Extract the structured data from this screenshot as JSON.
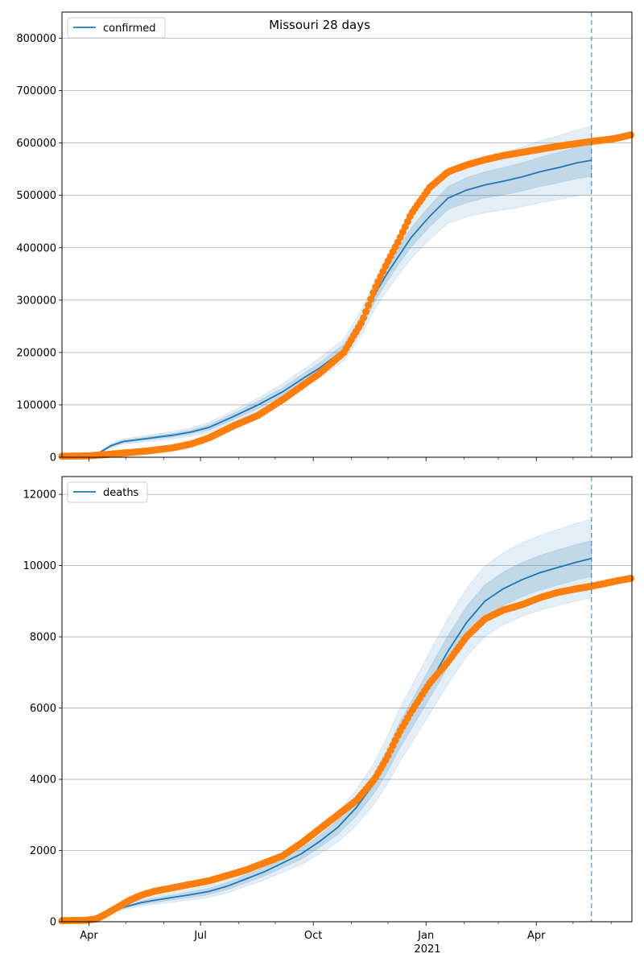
{
  "chart_data": [
    {
      "type": "line",
      "panel": "top",
      "title": "Missouri 28 days",
      "legend": {
        "label": "confirmed",
        "placement": "top-left"
      },
      "ylim": [
        0,
        850000
      ],
      "yticks": [
        0,
        100000,
        200000,
        300000,
        400000,
        500000,
        600000,
        700000,
        800000
      ],
      "ytick_labels": [
        "0",
        "100000",
        "200000",
        "300000",
        "400000",
        "500000",
        "600000",
        "700000",
        "800000"
      ],
      "grid": "horizontal",
      "forecast_line_day": 432,
      "observed": {
        "name": "observed",
        "color": "#ff7f0e",
        "x": [
          0,
          20,
          35,
          50,
          70,
          90,
          105,
          120,
          140,
          160,
          180,
          195,
          210,
          230,
          245,
          255,
          265,
          275,
          285,
          300,
          315,
          330,
          345,
          360,
          375,
          390,
          405,
          420,
          432,
          450,
          465
        ],
        "y": [
          2000,
          2500,
          5000,
          8000,
          12000,
          18000,
          25000,
          37000,
          60000,
          80000,
          110000,
          135000,
          160000,
          200000,
          260000,
          320000,
          370000,
          415000,
          465000,
          515000,
          545000,
          558000,
          568000,
          576000,
          582000,
          588000,
          594000,
          599000,
          603000,
          608000,
          616000
        ]
      },
      "forecast": {
        "name": "confirmed",
        "color": "#1f77b4",
        "x": [
          0,
          25,
          30,
          40,
          50,
          70,
          90,
          105,
          120,
          140,
          160,
          180,
          195,
          210,
          230,
          245,
          255,
          265,
          275,
          285,
          300,
          315,
          330,
          345,
          360,
          375,
          390,
          405,
          420,
          432
        ],
        "y": [
          2000,
          2500,
          8000,
          22000,
          30000,
          36000,
          42000,
          48000,
          57000,
          78000,
          100000,
          125000,
          148000,
          170000,
          205000,
          260000,
          310000,
          350000,
          385000,
          420000,
          460000,
          495000,
          510000,
          520000,
          527000,
          535000,
          545000,
          553000,
          562000,
          567000
        ],
        "band_inner_halfwidth": [
          0,
          0,
          1000,
          2000,
          2500,
          3000,
          3500,
          4000,
          5000,
          6000,
          7000,
          8000,
          9000,
          10000,
          11000,
          12000,
          14000,
          15000,
          16000,
          18000,
          20000,
          22000,
          24000,
          25000,
          26000,
          27000,
          28000,
          29000,
          30000,
          31000
        ],
        "band_outer_halfwidth": [
          0,
          0,
          2000,
          4000,
          5000,
          6000,
          7000,
          8000,
          9500,
          11000,
          13000,
          15000,
          17000,
          19000,
          21000,
          24000,
          28000,
          32000,
          36000,
          40000,
          44000,
          48000,
          51000,
          53000,
          55000,
          57000,
          59000,
          61000,
          63000,
          65000
        ]
      }
    },
    {
      "type": "line",
      "panel": "bottom",
      "title": "",
      "legend": {
        "label": "deaths",
        "placement": "top-left"
      },
      "ylim": [
        0,
        12500
      ],
      "yticks": [
        0,
        2000,
        4000,
        6000,
        8000,
        10000,
        12000
      ],
      "ytick_labels": [
        "0",
        "2000",
        "4000",
        "6000",
        "8000",
        "10000",
        "12000"
      ],
      "grid": "horizontal",
      "forecast_line_day": 432,
      "observed": {
        "name": "observed",
        "color": "#ff7f0e",
        "x": [
          0,
          20,
          28,
          35,
          45,
          55,
          65,
          75,
          90,
          105,
          120,
          135,
          150,
          165,
          180,
          195,
          210,
          225,
          240,
          255,
          265,
          275,
          285,
          300,
          315,
          330,
          345,
          360,
          375,
          390,
          405,
          420,
          432,
          450,
          465
        ],
        "y": [
          30,
          40,
          80,
          200,
          400,
          600,
          750,
          850,
          950,
          1050,
          1150,
          1300,
          1450,
          1650,
          1850,
          2200,
          2600,
          3000,
          3400,
          4000,
          4600,
          5300,
          5900,
          6700,
          7300,
          8000,
          8500,
          8750,
          8900,
          9100,
          9250,
          9350,
          9420,
          9550,
          9650
        ]
      },
      "forecast": {
        "name": "deaths",
        "color": "#1f77b4",
        "x": [
          0,
          20,
          28,
          35,
          45,
          55,
          65,
          75,
          90,
          105,
          120,
          135,
          150,
          165,
          180,
          195,
          210,
          225,
          240,
          255,
          265,
          275,
          285,
          300,
          315,
          330,
          345,
          360,
          375,
          390,
          405,
          420,
          432
        ],
        "y": [
          30,
          40,
          80,
          200,
          350,
          450,
          540,
          600,
          680,
          760,
          850,
          1000,
          1200,
          1400,
          1650,
          1900,
          2250,
          2650,
          3200,
          3900,
          4500,
          5200,
          5800,
          6700,
          7600,
          8400,
          9000,
          9350,
          9600,
          9800,
          9950,
          10100,
          10200
        ],
        "band_inner_halfwidth": [
          0,
          0,
          5,
          15,
          30,
          40,
          50,
          60,
          70,
          80,
          90,
          100,
          110,
          120,
          130,
          150,
          170,
          200,
          240,
          280,
          320,
          360,
          390,
          420,
          440,
          450,
          460,
          470,
          480,
          490,
          495,
          500,
          500
        ],
        "band_outer_halfwidth": [
          0,
          0,
          10,
          30,
          60,
          80,
          100,
          110,
          130,
          150,
          170,
          190,
          210,
          230,
          260,
          300,
          350,
          420,
          500,
          580,
          660,
          740,
          800,
          870,
          920,
          960,
          990,
          1010,
          1030,
          1050,
          1070,
          1090,
          1100
        ]
      }
    }
  ],
  "x_axis": {
    "start_date": "2020-03-10",
    "range_days": [
      0,
      465
    ],
    "ticks": [
      {
        "day": 22,
        "label": "Apr"
      },
      {
        "day": 113,
        "label": "Jul"
      },
      {
        "day": 205,
        "label": "Oct"
      },
      {
        "day": 297,
        "label": "Jan"
      },
      {
        "day": 387,
        "label": "Apr"
      }
    ],
    "minor_tick_days": [
      52,
      83,
      144,
      174,
      236,
      266,
      328,
      356,
      417,
      448
    ],
    "year_label": "2021",
    "year_label_day": 297
  }
}
